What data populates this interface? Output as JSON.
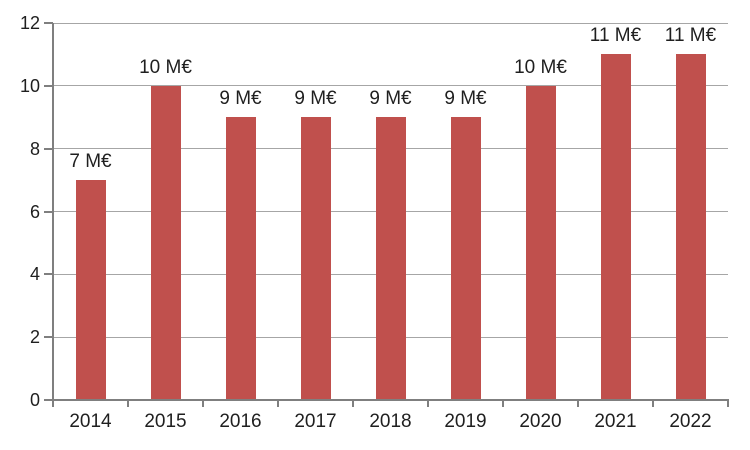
{
  "chart_data": {
    "type": "bar",
    "title": "",
    "categories": [
      "2014",
      "2015",
      "2016",
      "2017",
      "2018",
      "2019",
      "2020",
      "2021",
      "2022"
    ],
    "values": [
      7,
      10,
      9,
      9,
      9,
      9,
      10,
      11,
      11
    ],
    "data_labels": [
      "7 M€",
      "10 M€",
      "9 M€",
      "9 M€",
      "9 M€",
      "9 M€",
      "10 M€",
      "11 M€",
      "11 M€"
    ],
    "unit": "M€",
    "xlabel": "",
    "ylabel": "",
    "ylim": [
      0,
      12
    ],
    "ytick_step": 2,
    "ytick_labels": [
      "0",
      "2",
      "4",
      "6",
      "8",
      "10",
      "12"
    ],
    "grid": true,
    "legend": "none",
    "colors": {
      "bar": "#C0504D",
      "gridline": "#A6A6A6",
      "axis": "#7F7F7F",
      "text": "#1F1F1F"
    }
  }
}
